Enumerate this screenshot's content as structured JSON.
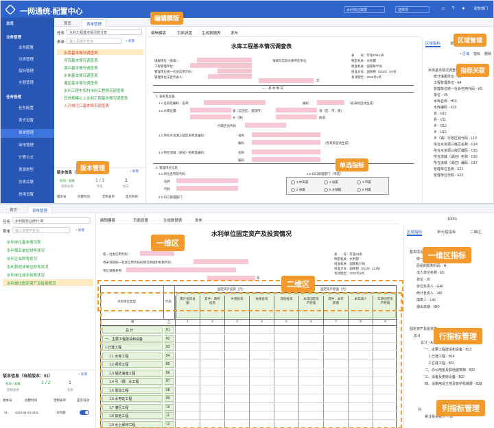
{
  "app": {
    "title": "一网通统-配置中心",
    "user": "配管部门",
    "sel1": "水利综合填报",
    "sel2": "选择项"
  },
  "sidebar": {
    "items": [
      {
        "label": "总览",
        "group": true
      },
      {
        "label": "业务管理",
        "group": true
      },
      {
        "label": "业务配置"
      },
      {
        "label": "分类管理"
      },
      {
        "label": "指标管理"
      },
      {
        "label": "主题管理"
      },
      {
        "label": "任务管理",
        "group": true
      },
      {
        "label": "任务配置"
      },
      {
        "label": "表式设置"
      },
      {
        "label": "表单管理"
      },
      {
        "label": "审核管理"
      },
      {
        "label": "计算公式"
      },
      {
        "label": "表源类型"
      },
      {
        "label": "总表关联"
      },
      {
        "label": "常用设置"
      }
    ]
  },
  "tabs1": {
    "home": "首页",
    "current": "表单管理"
  },
  "left1": {
    "task_label": "任务",
    "task_value": "水利工程基本情况统计表",
    "search_label": "表单",
    "search_placeholder": "输入关键字查询",
    "add": "+ 新增",
    "tree": [
      {
        "label": "水库基本情况调查表",
        "color": "r",
        "sel": true
      },
      {
        "label": "河流基本情况调查表",
        "color": "g"
      },
      {
        "label": "湖泊基本情况调查表",
        "color": "g"
      },
      {
        "label": "水闸基本情况调查表",
        "color": "g"
      },
      {
        "label": "灌区基本情况调查表",
        "color": "g"
      },
      {
        "label": "水利工程中农村水利工程情况调查表",
        "color": "g"
      },
      {
        "label": "其他规模以上水利工程基本情况调查表",
        "color": "g"
      },
      {
        "label": "入河排污口基本情况调查表",
        "color": "r"
      }
    ],
    "version_title": "版本信息（当前版本：01）",
    "version_add": "+ 新增",
    "stat1": "有效 / 总数",
    "stat1v": "1 / 2",
    "stat1s": "定制表单",
    "stat2v": "1",
    "stat2s": "华夹",
    "stat3v": "1",
    "stat3s": "坊方",
    "cols": [
      "版本号",
      "创建时间",
      "定制表单",
      "是否有效"
    ]
  },
  "toolbar1": {
    "items": [
      "编辑模版",
      "页面设置",
      "生成数据表",
      "发布"
    ]
  },
  "doc1": {
    "title": "水库工程基本情况调查表",
    "meta": [
      "表　　号：年鉴109-1表",
      "制定机关：水利部",
      "批准机关：国家统计局",
      "批准文号：国统制〔2023〕XX号",
      "有效期至：2024年1月"
    ],
    "meta_lbl": [
      "填报单位（盖章）：",
      "工程管理单位：",
      "管理单位统一社会信用代码：",
      "管理单位法定代表人："
    ],
    "unit_note": "请填写实际水库所在单位",
    "year": "年",
    "section": "一、基 本 情 况",
    "rows": [
      "1. 名称及位置",
      "1.1 名称及编码：名称",
      "编码",
      "（各系统自动生成）",
      "1.2 水库位置：",
      "省（自治区、直辖市）",
      "县（区、市、旗）",
      "乡（镇）",
      "街道",
      "行政区划代码",
      "1.3 所在水资源三级区名称及编码：",
      "名称",
      "编码",
      "（各系统自动生成）",
      "1.4 所在流域（湖泊）名称及编码：",
      "名称",
      "编码",
      "2. 管理单位信息",
      "2.1 单位名称及代码",
      "2.2 归口管理部门",
      "名称",
      "代码",
      "2.3 归口管理部门"
    ],
    "radios": [
      "1 中央属",
      "2 省属",
      "3 市属",
      "4 县属",
      "5 乡镇属",
      "6 村属"
    ],
    "radio_hdr": "2.2 归口管理部门（单选）"
  },
  "right1": {
    "tabs": [
      "区域指标",
      "单元",
      "行指"
    ],
    "items": [
      "水库基本情况调查表",
      "统计填报单位 - E3",
      "工程管理单位 - E4",
      "管理单位统一社会信用代码 - H5",
      "单位 - V6",
      "水库名称 - H10",
      "水库编码 - X10",
      "省 - G11",
      "县 - V11",
      "乡 - G12",
      "乡 - U12",
      "乡（镇）行政区划代码 - L13",
      "所在水资源三级区名称 - O14",
      "所在水资源三级区编码 - O15",
      "所在流域（湖泊）名称 - O16",
      "所在流域（湖泊）编码 - O17",
      "管理单位名称 - E21",
      "管理单位代码 - E22"
    ],
    "toolbar": [
      "+ 区域",
      "指标",
      "删除"
    ]
  },
  "callouts1": {
    "edit_template": "编辑模版",
    "region_mgmt": "区域管理",
    "indicator_link": "指标关联",
    "version_mgmt": "版本管理",
    "radio_indicator": "单选指标"
  },
  "tabs2": {
    "home": "首页",
    "current": "表单管理"
  },
  "left2": {
    "task_label": "任务",
    "task_value": "水利服务业统计-新",
    "search_label": "表单",
    "search_placeholder": "输入关键字查询",
    "add": "+ 新增",
    "tree": [
      {
        "label": "水利单位基本情况表",
        "color": "g"
      },
      {
        "label": "水利事业单位财务状况",
        "color": "g"
      },
      {
        "label": "水利企业财务状况",
        "color": "g"
      },
      {
        "label": "水利其他非单位财务状况",
        "color": "g"
      },
      {
        "label": "水利单位成本核算状况",
        "color": "g"
      },
      {
        "label": "水利单位固定资产及投资情况",
        "color": "g",
        "sel": true
      }
    ],
    "version_title": "版本信息（当前版本：01）",
    "version_add": "+ 新增",
    "stat1": "有效 / 总数",
    "stat1v": "1 / 2",
    "stat1s": "定制表单",
    "stat2v": "1",
    "stat2s": "华夹",
    "cols": [
      "版本号",
      "创建时间",
      "定制表单",
      "是否有效"
    ],
    "row": {
      "ver": "01",
      "time": "2023-04-03 09:5...",
      "form": "水利部"
    }
  },
  "toolbar2": {
    "items": [
      "编辑模版",
      "页面设置",
      "生成数据表",
      "发布"
    ],
    "zoom": "100%"
  },
  "doc2": {
    "title": "水利单位固定资产及投资情况",
    "lbl1": "统一社会信用代码：",
    "lbl2": "尚未领取统一社会信用代码的填写原组织机构代码：",
    "lbl3": "单位详细名称：",
    "year": "年",
    "meta": [
      "表　　号：年鉴04表",
      "制定机关：水利部",
      "批准机关：国家统计局",
      "批准文号：国统制〔2019〕121号",
      "有效期至：2022年9月"
    ],
    "grp1": "固定资产投资（元）",
    "grp2": "固定资产原值（元）",
    "col_head": "水利单位类型",
    "code_head": "代码",
    "cols": [
      "累计投资总额",
      "其中：政府投资",
      "中央投资",
      "省级投资",
      "其他投资",
      "本年固定资产原值",
      "其中：本年新增",
      "本年减少",
      "年末固定资产原值"
    ],
    "colnums": [
      "1",
      "2",
      "3",
      "4",
      "5",
      "6",
      "7",
      "8",
      "9"
    ],
    "rowhdr": "甲",
    "rowhdr2": "乙",
    "rows": [
      {
        "label": "总  计",
        "code": "01"
      },
      {
        "label": "一、主要工程建设和设备",
        "code": "02"
      },
      {
        "label": "1.已建工程",
        "code": "03"
      },
      {
        "label": "1.1 水库工程",
        "code": "04"
      },
      {
        "label": "1.2 闸坝工程",
        "code": "05"
      },
      {
        "label": "1.3 堤防海塘工程",
        "code": "06"
      },
      {
        "label": "1.4 引（调）水工程",
        "code": "07"
      },
      {
        "label": "1.5 泵站工程",
        "code": "08"
      },
      {
        "label": "1.6 水电站工程",
        "code": "09"
      },
      {
        "label": "1.7 灌区工程",
        "code": "10"
      },
      {
        "label": "1.8 其他工程",
        "code": "11"
      },
      {
        "label": "1.9 水土保持工程",
        "code": "12"
      }
    ]
  },
  "right2": {
    "tabs": [
      "区域指标",
      "单元格指标",
      "二维区"
    ],
    "items": [
      "基本情况调查表",
      "统一社会信用代码 - F3",
      "原组织机构代码 - I4",
      "法人单位名称 - E5",
      "单位 - J6",
      "单位负责人 - G40",
      "统计负责人 - J40",
      "填表人 - L40",
      "报出日期 - N40"
    ],
    "items2": [
      "固定资产及投资表",
      "总计",
      "总计 - A12",
      "一、主要工程建设和设备 - B13",
      "1.已建工程 - B14",
      "2.在建工程 - B31",
      "二、办公用房及其他建筑物 - B32",
      "三、设备及用房设备 - B37",
      "四、设施用设立地及管护机械费 - B38"
    ],
    "items3": [
      "列",
      "累计投资投入 - H9"
    ]
  },
  "callouts2": {
    "one_d": "一维区",
    "one_d_ind": "一维区指标",
    "two_d": "二维区",
    "row_ind": "行指标管理",
    "col_ind": "列指标管理"
  }
}
